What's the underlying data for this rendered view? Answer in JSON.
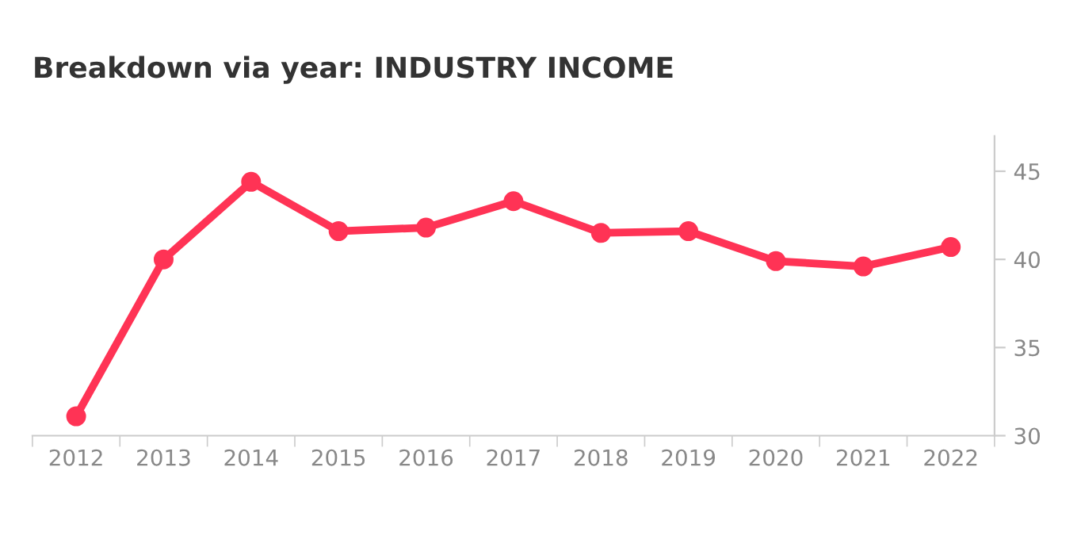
{
  "chart_data": {
    "type": "line",
    "title": "Breakdown via year: INDUSTRY INCOME",
    "categories": [
      "2012",
      "2013",
      "2014",
      "2015",
      "2016",
      "2017",
      "2018",
      "2019",
      "2020",
      "2021",
      "2022"
    ],
    "series": [
      {
        "color": "#ff3355",
        "values": [
          31.1,
          40.0,
          44.4,
          41.6,
          41.8,
          43.3,
          41.5,
          41.6,
          39.9,
          39.6,
          40.7
        ]
      }
    ],
    "ylim": [
      30,
      47
    ],
    "yticks": [
      30,
      35,
      40,
      45
    ],
    "grid": false,
    "legend": false,
    "marker": "circle",
    "line_style": "solid"
  }
}
